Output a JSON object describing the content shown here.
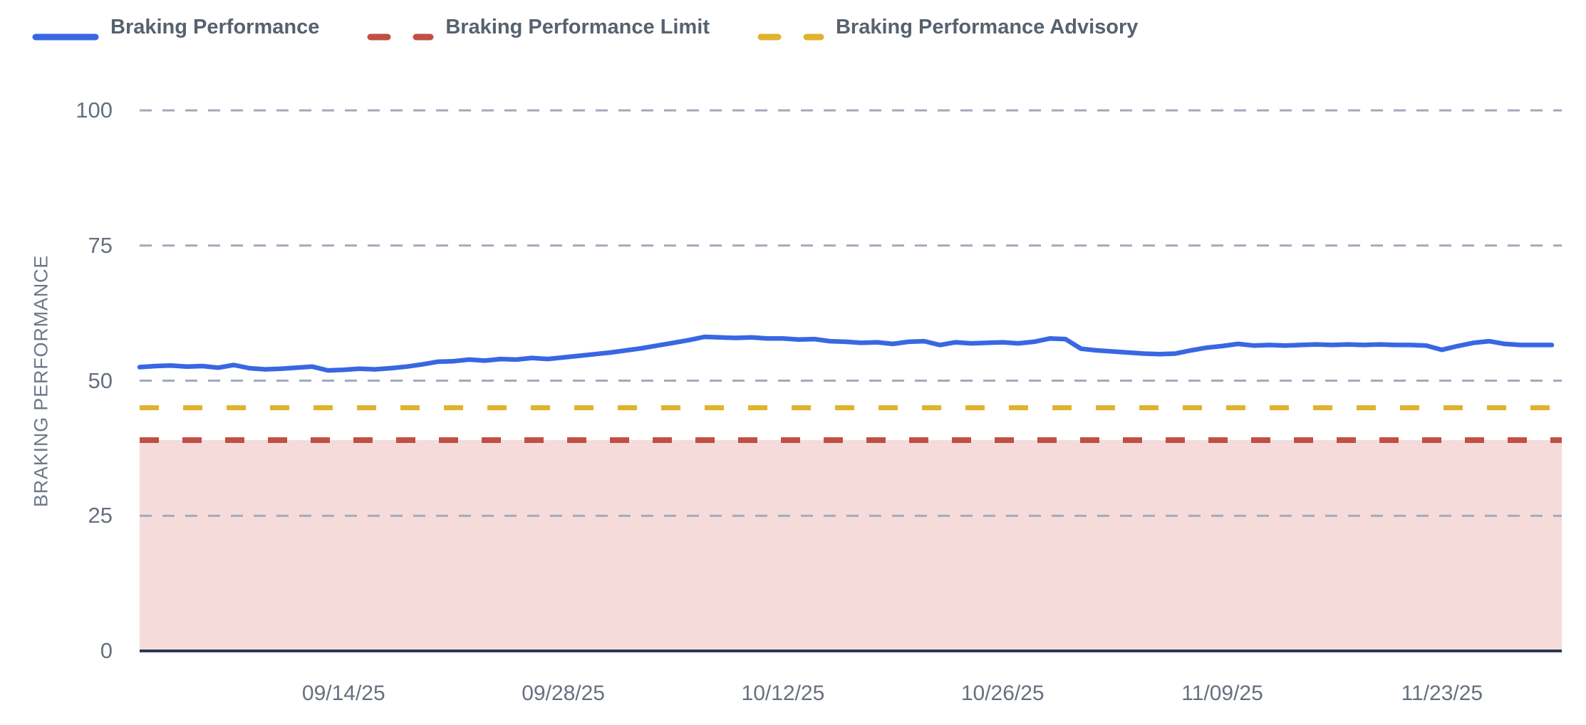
{
  "legend": {
    "items": [
      {
        "label": "Braking Performance",
        "color": "#3867e2",
        "style": "solid"
      },
      {
        "label": "Braking Performance Limit",
        "color": "#bf5044",
        "style": "dashed"
      },
      {
        "label": "Braking Performance Advisory",
        "color": "#e0b32e",
        "style": "dashed"
      }
    ]
  },
  "colors": {
    "series_blue": "#3867e2",
    "limit_red": "#bf5044",
    "advisory_yellow": "#e0b32e",
    "violation_fill": "#f6dbdb",
    "grid_line": "#a2aabb",
    "zero_axis": "#2c3850",
    "tick_text": "#66707f",
    "legend_text": "#57616f",
    "background": "#ffffff"
  },
  "chart_data": {
    "type": "line",
    "title": "",
    "xlabel": "",
    "ylabel": "BRAKING PERFORMANCE",
    "ylim": [
      0,
      100
    ],
    "yticks": [
      0,
      25,
      50,
      75,
      100
    ],
    "xtick_labels": [
      "09/14/25",
      "09/28/25",
      "10/12/25",
      "10/26/25",
      "11/09/25",
      "11/23/25"
    ],
    "grid": "horizontal-dashed",
    "legend_position": "top-left",
    "x": [
      "09/01/25",
      "09/02/25",
      "09/03/25",
      "09/04/25",
      "09/05/25",
      "09/06/25",
      "09/07/25",
      "09/08/25",
      "09/09/25",
      "09/10/25",
      "09/11/25",
      "09/12/25",
      "09/13/25",
      "09/14/25",
      "09/15/25",
      "09/16/25",
      "09/17/25",
      "09/18/25",
      "09/19/25",
      "09/20/25",
      "09/21/25",
      "09/22/25",
      "09/23/25",
      "09/24/25",
      "09/25/25",
      "09/26/25",
      "09/27/25",
      "09/28/25",
      "09/29/25",
      "09/30/25",
      "10/01/25",
      "10/02/25",
      "10/03/25",
      "10/04/25",
      "10/05/25",
      "10/06/25",
      "10/07/25",
      "10/08/25",
      "10/09/25",
      "10/10/25",
      "10/11/25",
      "10/12/25",
      "10/13/25",
      "10/14/25",
      "10/15/25",
      "10/16/25",
      "10/17/25",
      "10/18/25",
      "10/19/25",
      "10/20/25",
      "10/21/25",
      "10/22/25",
      "10/23/25",
      "10/24/25",
      "10/25/25",
      "10/26/25",
      "10/27/25",
      "10/28/25",
      "10/29/25",
      "10/30/25",
      "10/31/25",
      "11/01/25",
      "11/02/25",
      "11/03/25",
      "11/04/25",
      "11/05/25",
      "11/06/25",
      "11/07/25",
      "11/08/25",
      "11/09/25",
      "11/10/25",
      "11/11/25",
      "11/12/25",
      "11/13/25",
      "11/14/25",
      "11/15/25",
      "11/16/25",
      "11/17/25",
      "11/18/25",
      "11/19/25",
      "11/20/25",
      "11/21/25",
      "11/22/25",
      "11/23/25",
      "11/24/25",
      "11/25/25",
      "11/26/25",
      "11/27/25",
      "11/28/25",
      "11/29/25",
      "11/30/25"
    ],
    "series": [
      {
        "name": "Braking Performance",
        "type": "line",
        "color": "#3867e2",
        "values": [
          52.5,
          52.7,
          52.8,
          52.6,
          52.7,
          52.4,
          52.9,
          52.3,
          52.1,
          52.2,
          52.4,
          52.6,
          51.9,
          52.0,
          52.2,
          52.1,
          52.3,
          52.6,
          53.0,
          53.5,
          53.6,
          53.9,
          53.7,
          54.0,
          53.9,
          54.2,
          54.0,
          54.3,
          54.6,
          54.9,
          55.2,
          55.6,
          56.0,
          56.5,
          57.0,
          57.5,
          58.1,
          58.0,
          57.9,
          58.0,
          57.8,
          57.8,
          57.6,
          57.7,
          57.3,
          57.2,
          57.0,
          57.1,
          56.8,
          57.2,
          57.3,
          56.6,
          57.1,
          56.9,
          57.0,
          57.1,
          56.9,
          57.2,
          57.8,
          57.7,
          55.9,
          55.6,
          55.4,
          55.2,
          55.0,
          54.9,
          55.0,
          55.6,
          56.1,
          56.4,
          56.8,
          56.5,
          56.6,
          56.5,
          56.6,
          56.7,
          56.6,
          56.7,
          56.6,
          56.7,
          56.6,
          56.6,
          56.5,
          55.7,
          56.4,
          57.0,
          57.3,
          56.8,
          56.6,
          56.6,
          56.6
        ]
      },
      {
        "name": "Braking Performance Limit",
        "type": "constant-line",
        "color": "#bf5044",
        "value": 39,
        "fill_below": "#f6dbdb"
      },
      {
        "name": "Braking Performance Advisory",
        "type": "constant-line",
        "color": "#e0b32e",
        "value": 45
      }
    ]
  }
}
